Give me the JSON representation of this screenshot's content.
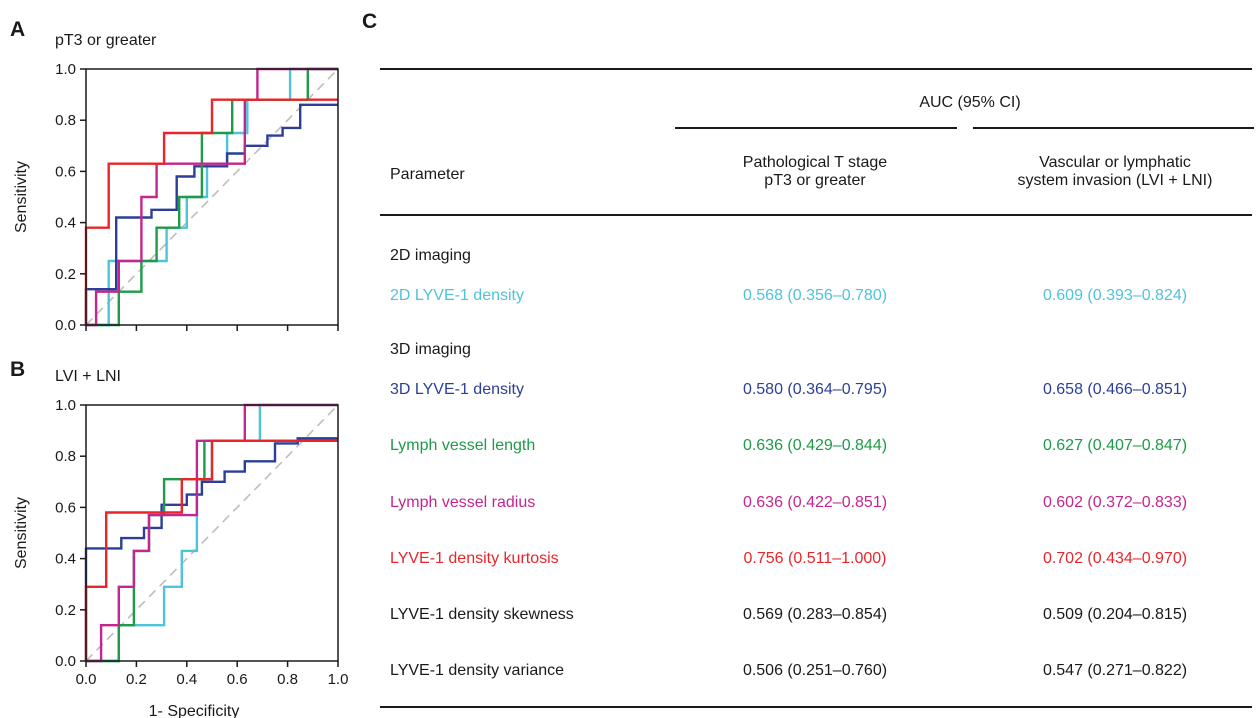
{
  "panels": {
    "a_letter": "A",
    "b_letter": "B",
    "c_letter": "C"
  },
  "colors": {
    "2d_lyve1_density": "#4fc3da",
    "3d_lyve1_density": "#2b3f99",
    "lymph_vessel_length": "#1e9a48",
    "lymph_vessel_radius": "#c4268f",
    "lyve1_density_kurtosis": "#e8262a",
    "reference": "#bdbdbd",
    "text": "#1a1a1a"
  },
  "chart_data": [
    {
      "type": "line",
      "title": "pT3 or greater",
      "xlabel": "",
      "ylabel": "Sensitivity",
      "xlim": [
        0,
        1
      ],
      "ylim": [
        0,
        1
      ],
      "yticks": [
        "0.0",
        "0.2",
        "0.4",
        "0.6",
        "0.8",
        "1.0"
      ],
      "xticks": [],
      "reference_line": true,
      "series": [
        {
          "key": "2d_lyve1_density",
          "x": [
            0,
            0.09,
            0.09,
            0.09,
            0.32,
            0.32,
            0.4,
            0.4,
            0.48,
            0.48,
            0.56,
            0.56,
            0.64,
            0.64,
            0.81,
            0.81,
            1
          ],
          "y": [
            0,
            0,
            0.13,
            0.25,
            0.25,
            0.38,
            0.38,
            0.5,
            0.5,
            0.63,
            0.63,
            0.75,
            0.75,
            0.88,
            0.88,
            1,
            1
          ]
        },
        {
          "key": "3d_lyve1_density",
          "x": [
            0,
            0,
            0.12,
            0.12,
            0.26,
            0.26,
            0.36,
            0.36,
            0.43,
            0.43,
            0.56,
            0.56,
            0.63,
            0.63,
            0.72,
            0.72,
            0.78,
            0.78,
            0.85,
            0.85,
            1
          ],
          "y": [
            0,
            0.14,
            0.14,
            0.42,
            0.42,
            0.45,
            0.45,
            0.58,
            0.58,
            0.62,
            0.62,
            0.67,
            0.67,
            0.7,
            0.7,
            0.74,
            0.74,
            0.77,
            0.77,
            0.86,
            0.86
          ]
        },
        {
          "key": "lymph_vessel_length",
          "x": [
            0,
            0.13,
            0.13,
            0.22,
            0.22,
            0.28,
            0.28,
            0.37,
            0.37,
            0.46,
            0.46,
            0.58,
            0.58,
            0.88,
            0.88,
            1
          ],
          "y": [
            0,
            0,
            0.13,
            0.13,
            0.25,
            0.25,
            0.38,
            0.38,
            0.5,
            0.5,
            0.75,
            0.75,
            0.88,
            0.88,
            1,
            1
          ]
        },
        {
          "key": "lymph_vessel_radius",
          "x": [
            0,
            0.04,
            0.04,
            0.13,
            0.13,
            0.22,
            0.22,
            0.28,
            0.28,
            0.37,
            0.37,
            0.63,
            0.63,
            0.68,
            0.68,
            1
          ],
          "y": [
            0,
            0,
            0.13,
            0.13,
            0.25,
            0.25,
            0.5,
            0.5,
            0.63,
            0.63,
            0.63,
            0.63,
            0.88,
            0.88,
            1,
            1
          ]
        },
        {
          "key": "lyve1_density_kurtosis",
          "x": [
            0,
            0,
            0.04,
            0.04,
            0.09,
            0.09,
            0.31,
            0.31,
            0.5,
            0.5,
            1
          ],
          "y": [
            0,
            0.38,
            0.38,
            0.38,
            0.38,
            0.63,
            0.63,
            0.75,
            0.75,
            0.88,
            0.88
          ]
        }
      ]
    },
    {
      "type": "line",
      "title": "LVI + LNI",
      "xlabel": "1- Specificity",
      "ylabel": "Sensitivity",
      "xlim": [
        0,
        1
      ],
      "ylim": [
        0,
        1
      ],
      "yticks": [
        "0.0",
        "0.2",
        "0.4",
        "0.6",
        "0.8",
        "1.0"
      ],
      "xticks": [
        "0.0",
        "0.2",
        "0.4",
        "0.6",
        "0.8",
        "1.0"
      ],
      "reference_line": true,
      "series": [
        {
          "key": "2d_lyve1_density",
          "x": [
            0,
            0.13,
            0.13,
            0.31,
            0.31,
            0.38,
            0.38,
            0.44,
            0.44,
            0.5,
            0.5,
            0.69,
            0.69,
            0.75,
            0.75,
            1
          ],
          "y": [
            0,
            0,
            0.14,
            0.14,
            0.29,
            0.29,
            0.43,
            0.43,
            0.71,
            0.71,
            0.86,
            0.86,
            1,
            1,
            1,
            1
          ]
        },
        {
          "key": "3d_lyve1_density",
          "x": [
            0,
            0,
            0.14,
            0.14,
            0.23,
            0.23,
            0.3,
            0.3,
            0.4,
            0.4,
            0.46,
            0.46,
            0.55,
            0.55,
            0.63,
            0.63,
            0.75,
            0.75,
            0.84,
            0.84,
            1
          ],
          "y": [
            0,
            0.44,
            0.44,
            0.48,
            0.48,
            0.52,
            0.52,
            0.61,
            0.61,
            0.65,
            0.65,
            0.7,
            0.7,
            0.74,
            0.74,
            0.78,
            0.78,
            0.85,
            0.85,
            0.87,
            0.87
          ]
        },
        {
          "key": "lymph_vessel_length",
          "x": [
            0,
            0.13,
            0.13,
            0.19,
            0.19,
            0.25,
            0.25,
            0.31,
            0.31,
            0.38,
            0.38,
            0.47,
            0.47,
            0.53,
            0.53,
            1
          ],
          "y": [
            0,
            0,
            0.14,
            0.14,
            0.43,
            0.43,
            0.57,
            0.57,
            0.71,
            0.71,
            0.71,
            0.71,
            0.86,
            0.86,
            0.86,
            0.86
          ]
        },
        {
          "key": "lymph_vessel_radius",
          "x": [
            0,
            0.06,
            0.06,
            0.13,
            0.13,
            0.19,
            0.19,
            0.25,
            0.25,
            0.31,
            0.31,
            0.44,
            0.44,
            0.63,
            0.63,
            0.69,
            0.69,
            1
          ],
          "y": [
            0,
            0,
            0.14,
            0.14,
            0.29,
            0.29,
            0.43,
            0.43,
            0.57,
            0.57,
            0.57,
            0.57,
            0.86,
            0.86,
            1,
            1,
            1,
            1
          ]
        },
        {
          "key": "lyve1_density_kurtosis",
          "x": [
            0,
            0,
            0.08,
            0.08,
            0.38,
            0.38,
            0.5,
            0.5,
            0.56,
            0.56,
            0.75,
            0.75,
            1
          ],
          "y": [
            0,
            0.29,
            0.29,
            0.58,
            0.58,
            0.71,
            0.71,
            0.86,
            0.86,
            0.86,
            0.86,
            0.86,
            0.86
          ]
        }
      ]
    }
  ],
  "table": {
    "group_header": "AUC (95% CI)",
    "col_parameter": "Parameter",
    "col_pt3_line1": "Pathological T stage",
    "col_pt3_line2": "pT3 or greater",
    "col_lvi_line1": "Vascular or lymphatic",
    "col_lvi_line2": "system invasion (LVI + LNI)",
    "section_2d": "2D imaging",
    "section_3d": "3D imaging",
    "rows": [
      {
        "parameter": "2D LYVE-1 density",
        "pt3": "0.568 (0.356–0.780)",
        "lvi": "0.609 (0.393–0.824)",
        "color_key": "2d_lyve1_density"
      },
      {
        "parameter": "3D LYVE-1 density",
        "pt3": "0.580 (0.364–0.795)",
        "lvi": "0.658 (0.466–0.851)",
        "color_key": "3d_lyve1_density"
      },
      {
        "parameter": "Lymph vessel length",
        "pt3": "0.636 (0.429–0.844)",
        "lvi": "0.627 (0.407–0.847)",
        "color_key": "lymph_vessel_length"
      },
      {
        "parameter": "Lymph vessel radius",
        "pt3": "0.636 (0.422–0.851)",
        "lvi": "0.602 (0.372–0.833)",
        "color_key": "lymph_vessel_radius"
      },
      {
        "parameter": "LYVE-1 density kurtosis",
        "pt3": "0.756 (0.511–1.000)",
        "lvi": "0.702 (0.434–0.970)",
        "color_key": "lyve1_density_kurtosis"
      },
      {
        "parameter": "LYVE-1 density skewness",
        "pt3": "0.569 (0.283–0.854)",
        "lvi": "0.509 (0.204–0.815)",
        "color_key": "text"
      },
      {
        "parameter": "LYVE-1 density variance",
        "pt3": "0.506 (0.251–0.760)",
        "lvi": "0.547 (0.271–0.822)",
        "color_key": "text"
      }
    ]
  }
}
